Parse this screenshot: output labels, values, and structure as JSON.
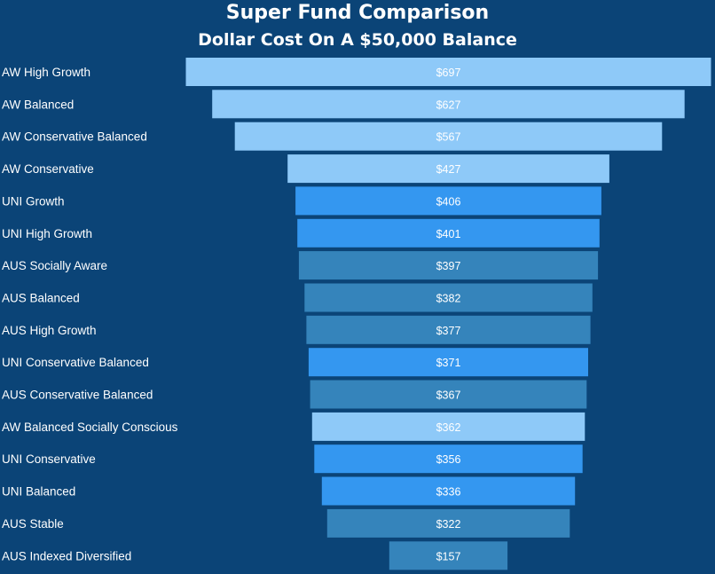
{
  "chart_data": {
    "type": "bar",
    "subtype": "funnel",
    "title": "Super Fund Comparison",
    "subtitle": "Dollar Cost On A $50,000 Balance",
    "categories": [
      "AW High Growth",
      "AW Balanced",
      "AW Conservative Balanced",
      "AW Conservative",
      "UNI Growth",
      "UNI High Growth",
      "AUS Socially Aware",
      "AUS Balanced",
      "AUS High Growth",
      "UNI Conservative Balanced",
      "AUS Conservative Balanced",
      "AW Balanced Socially Conscious",
      "UNI Conservative",
      "UNI Balanced",
      "AUS Stable",
      "AUS Indexed Diversified"
    ],
    "values": [
      697,
      627,
      567,
      427,
      406,
      401,
      397,
      382,
      377,
      371,
      367,
      362,
      356,
      336,
      322,
      157
    ],
    "value_labels": [
      "$697",
      "$627",
      "$567",
      "$427",
      "$406",
      "$401",
      "$397",
      "$382",
      "$377",
      "$371",
      "$367",
      "$362",
      "$356",
      "$336",
      "$322",
      "$157"
    ],
    "groups": [
      "AW",
      "AW",
      "AW",
      "AW",
      "UNI",
      "UNI",
      "AUS",
      "AUS",
      "AUS",
      "UNI",
      "AUS",
      "AW",
      "UNI",
      "UNI",
      "AUS",
      "AUS"
    ],
    "group_colors": {
      "AW": "#8ec9f8",
      "UNI": "#3497f0",
      "AUS": "#3584bb"
    },
    "background": "#0b4477",
    "legend": "none",
    "grid": false
  }
}
